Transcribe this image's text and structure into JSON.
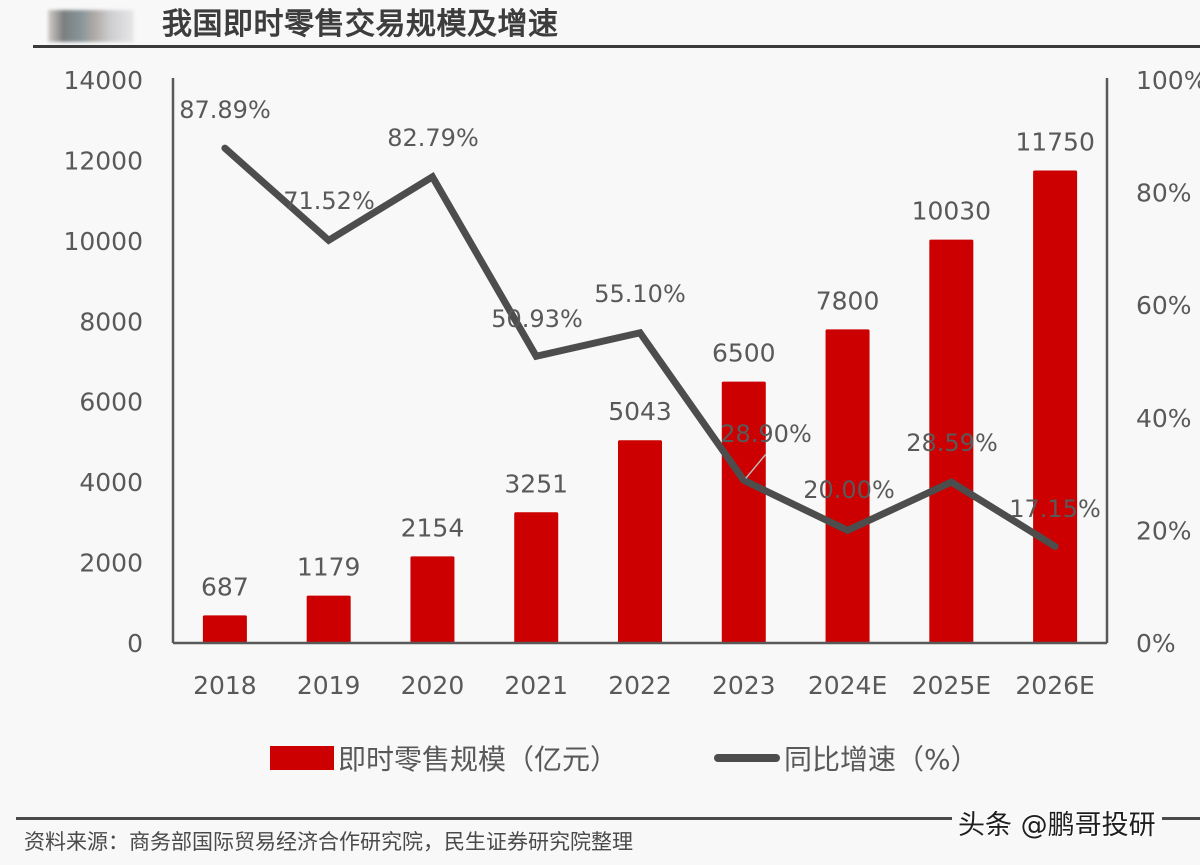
{
  "header": {
    "title": "我国即时零售交易规模及增速"
  },
  "chart_data": {
    "type": "bar",
    "title": "我国即时零售交易规模及增速",
    "categories": [
      "2018",
      "2019",
      "2020",
      "2021",
      "2022",
      "2023",
      "2024E",
      "2025E",
      "2026E"
    ],
    "series": [
      {
        "name": "即时零售规模（亿元）",
        "type": "bar",
        "axis": "left",
        "color": "#cc0000",
        "values": [
          687,
          1179,
          2154,
          3251,
          5043,
          6500,
          7800,
          10030,
          11750
        ],
        "labels": [
          "687",
          "1179",
          "2154",
          "3251",
          "5043",
          "6500",
          "7800",
          "10030",
          "11750"
        ]
      },
      {
        "name": "同比增速（%）",
        "type": "line",
        "axis": "right",
        "color": "#4d4d4d",
        "values": [
          87.89,
          71.52,
          82.79,
          50.93,
          55.1,
          28.9,
          20.0,
          28.59,
          17.15
        ],
        "labels": [
          "87.89%",
          "71.52%",
          "82.79%",
          "50.93%",
          "55.10%",
          "28.90%",
          "20.00%",
          "28.59%",
          "17.15%"
        ]
      }
    ],
    "y_left": {
      "min": 0,
      "max": 14000,
      "ticks": [
        0,
        2000,
        4000,
        6000,
        8000,
        10000,
        12000,
        14000
      ],
      "tick_labels": [
        "0",
        "2000",
        "4000",
        "6000",
        "8000",
        "10000",
        "12000",
        "14000"
      ]
    },
    "y_right": {
      "min": 0,
      "max": 100,
      "ticks": [
        0,
        20,
        40,
        60,
        80,
        100
      ],
      "tick_labels": [
        "0%",
        "20%",
        "40%",
        "60%",
        "80%",
        "100%"
      ]
    },
    "xlabel": "",
    "ylabel": "",
    "grid": false,
    "legend_position": "bottom"
  },
  "legend": {
    "bar_label": "即时零售规模（亿元）",
    "line_label": "同比增速（%）"
  },
  "footer": {
    "source": "资料来源：商务部国际贸易经济合作研究院，民生证券研究院整理",
    "watermark": "头条 @鹏哥投研"
  }
}
